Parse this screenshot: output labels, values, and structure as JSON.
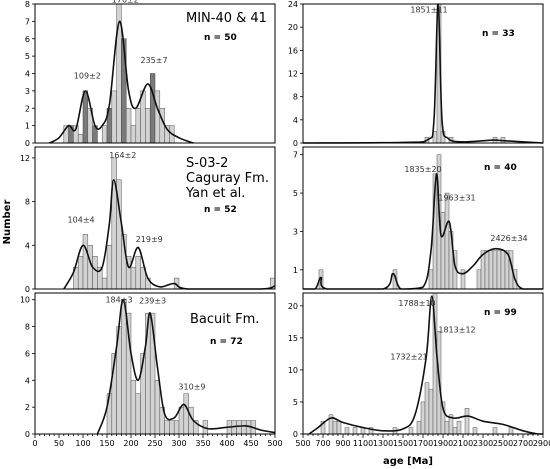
{
  "axes": {
    "ylabel": "Number",
    "xlabel": "age [Ma]"
  },
  "chart_data": [
    {
      "type": "bar",
      "panel": "top-left",
      "title_lines": [
        "MIN-40 & 41"
      ],
      "n_label": "n = 50",
      "bin_width": 10,
      "xlim": [
        0,
        500
      ],
      "ylim": [
        0,
        8
      ],
      "yticks": [
        0,
        1,
        2,
        3,
        4,
        5,
        6,
        7,
        8
      ],
      "xticks": [],
      "bins": [
        {
          "x": 60,
          "v": 1
        },
        {
          "x": 70,
          "v": 1,
          "dark": true
        },
        {
          "x": 80,
          "v": 1
        },
        {
          "x": 90,
          "v": 0.5
        },
        {
          "x": 100,
          "v": 3,
          "dark": true
        },
        {
          "x": 110,
          "v": 2
        },
        {
          "x": 120,
          "v": 1,
          "dark": true
        },
        {
          "x": 140,
          "v": 1
        },
        {
          "x": 150,
          "v": 2,
          "dark": true
        },
        {
          "x": 160,
          "v": 3
        },
        {
          "x": 170,
          "v": 8
        },
        {
          "x": 180,
          "v": 6,
          "dark": true
        },
        {
          "x": 190,
          "v": 2
        },
        {
          "x": 200,
          "v": 1
        },
        {
          "x": 210,
          "v": 2
        },
        {
          "x": 220,
          "v": 3
        },
        {
          "x": 230,
          "v": 2
        },
        {
          "x": 240,
          "v": 4,
          "dark": true
        },
        {
          "x": 250,
          "v": 3
        },
        {
          "x": 260,
          "v": 2
        },
        {
          "x": 270,
          "v": 1
        },
        {
          "x": 280,
          "v": 1
        }
      ],
      "curve": [
        [
          30,
          0
        ],
        [
          50,
          0.3
        ],
        [
          70,
          1.0
        ],
        [
          85,
          0.8
        ],
        [
          105,
          3.0
        ],
        [
          125,
          1.0
        ],
        [
          140,
          1.0
        ],
        [
          155,
          2.2
        ],
        [
          176,
          7.0
        ],
        [
          195,
          3.0
        ],
        [
          210,
          2.0
        ],
        [
          235,
          3.4
        ],
        [
          255,
          2.0
        ],
        [
          275,
          0.8
        ],
        [
          300,
          0.3
        ],
        [
          330,
          0
        ]
      ],
      "annotations": [
        {
          "text": "109±2",
          "x": 109,
          "y": 3.7
        },
        {
          "text": "176±2",
          "x": 188,
          "y": 8.1
        },
        {
          "text": "235±7",
          "x": 248,
          "y": 4.6
        }
      ]
    },
    {
      "type": "bar",
      "panel": "middle-left",
      "title_lines": [
        "S-03-2",
        "Caguray Fm.",
        "Yan et al."
      ],
      "n_label": "n = 52",
      "bin_width": 10,
      "xlim": [
        0,
        500
      ],
      "ylim": [
        0,
        13
      ],
      "yticks": [
        0,
        4,
        8,
        12
      ],
      "xticks": [],
      "bins": [
        {
          "x": 80,
          "v": 2
        },
        {
          "x": 90,
          "v": 3
        },
        {
          "x": 100,
          "v": 5
        },
        {
          "x": 110,
          "v": 4
        },
        {
          "x": 120,
          "v": 3
        },
        {
          "x": 130,
          "v": 2
        },
        {
          "x": 140,
          "v": 1
        },
        {
          "x": 150,
          "v": 4
        },
        {
          "x": 160,
          "v": 12
        },
        {
          "x": 170,
          "v": 10
        },
        {
          "x": 180,
          "v": 5
        },
        {
          "x": 190,
          "v": 3
        },
        {
          "x": 200,
          "v": 2
        },
        {
          "x": 210,
          "v": 3
        },
        {
          "x": 220,
          "v": 2
        },
        {
          "x": 230,
          "v": 1
        },
        {
          "x": 290,
          "v": 1
        },
        {
          "x": 490,
          "v": 1
        }
      ],
      "curve": [
        [
          60,
          0
        ],
        [
          80,
          1.5
        ],
        [
          100,
          4.0
        ],
        [
          120,
          2.0
        ],
        [
          140,
          2.0
        ],
        [
          155,
          6.0
        ],
        [
          164,
          10.0
        ],
        [
          180,
          6.0
        ],
        [
          195,
          2.0
        ],
        [
          215,
          3.8
        ],
        [
          235,
          1.0
        ],
        [
          260,
          0.2
        ],
        [
          290,
          0.5
        ],
        [
          320,
          0
        ],
        [
          470,
          0
        ],
        [
          500,
          0.3
        ]
      ],
      "annotations": [
        {
          "text": "104±4",
          "x": 96,
          "y": 6.1
        },
        {
          "text": "164±2",
          "x": 183,
          "y": 12.0
        },
        {
          "text": "219±9",
          "x": 238,
          "y": 4.3
        }
      ]
    },
    {
      "type": "bar",
      "panel": "bottom-left",
      "title_lines": [
        "Bacuit Fm."
      ],
      "n_label": "n = 72",
      "bin_width": 10,
      "xlim": [
        0,
        500
      ],
      "ylim": [
        0,
        10.5
      ],
      "yticks": [
        0,
        2,
        4,
        6,
        8,
        10
      ],
      "xticks": [
        0,
        50,
        100,
        150,
        200,
        250,
        300,
        350,
        400,
        450,
        500
      ],
      "minor_xtick_step": 10,
      "bins": [
        {
          "x": 150,
          "v": 3
        },
        {
          "x": 160,
          "v": 6
        },
        {
          "x": 170,
          "v": 8
        },
        {
          "x": 180,
          "v": 10
        },
        {
          "x": 190,
          "v": 9
        },
        {
          "x": 200,
          "v": 4
        },
        {
          "x": 210,
          "v": 3
        },
        {
          "x": 220,
          "v": 6
        },
        {
          "x": 230,
          "v": 9
        },
        {
          "x": 240,
          "v": 9
        },
        {
          "x": 250,
          "v": 4
        },
        {
          "x": 260,
          "v": 2
        },
        {
          "x": 270,
          "v": 1
        },
        {
          "x": 280,
          "v": 1
        },
        {
          "x": 290,
          "v": 1
        },
        {
          "x": 300,
          "v": 2
        },
        {
          "x": 310,
          "v": 3
        },
        {
          "x": 320,
          "v": 2
        },
        {
          "x": 330,
          "v": 1
        },
        {
          "x": 350,
          "v": 1
        },
        {
          "x": 400,
          "v": 1
        },
        {
          "x": 410,
          "v": 1
        },
        {
          "x": 420,
          "v": 1
        },
        {
          "x": 430,
          "v": 1
        },
        {
          "x": 440,
          "v": 1
        },
        {
          "x": 450,
          "v": 1
        }
      ],
      "curve": [
        [
          130,
          0
        ],
        [
          150,
          2.0
        ],
        [
          170,
          6.5
        ],
        [
          184,
          10.0
        ],
        [
          200,
          6.0
        ],
        [
          215,
          4.0
        ],
        [
          230,
          6.5
        ],
        [
          240,
          9.0
        ],
        [
          255,
          5.0
        ],
        [
          270,
          1.5
        ],
        [
          290,
          1.2
        ],
        [
          310,
          2.2
        ],
        [
          330,
          1.0
        ],
        [
          360,
          0.4
        ],
        [
          400,
          0.5
        ],
        [
          440,
          0.6
        ],
        [
          470,
          0.3
        ],
        [
          500,
          0.1
        ]
      ],
      "annotations": [
        {
          "text": "184±3",
          "x": 175,
          "y": 9.8
        },
        {
          "text": "239±3",
          "x": 245,
          "y": 9.7
        },
        {
          "text": "310±9",
          "x": 327,
          "y": 3.3
        }
      ]
    },
    {
      "type": "bar",
      "panel": "top-right",
      "title_lines": [],
      "n_label": "n = 33",
      "bin_width": 40,
      "xlim": [
        500,
        2900
      ],
      "ylim": [
        0,
        24
      ],
      "yticks": [
        0,
        4,
        8,
        12,
        16,
        20,
        24
      ],
      "xticks": [],
      "bins": [
        {
          "x": 1720,
          "v": 1
        },
        {
          "x": 1800,
          "v": 2
        },
        {
          "x": 1840,
          "v": 24
        },
        {
          "x": 1880,
          "v": 2
        },
        {
          "x": 1960,
          "v": 1
        },
        {
          "x": 2400,
          "v": 1
        },
        {
          "x": 2480,
          "v": 1
        }
      ],
      "curve": [
        [
          500,
          0
        ],
        [
          1500,
          0.1
        ],
        [
          1750,
          0.6
        ],
        [
          1810,
          4.0
        ],
        [
          1851,
          24.0
        ],
        [
          1890,
          4.0
        ],
        [
          1950,
          0.8
        ],
        [
          2100,
          0.2
        ],
        [
          2400,
          0.5
        ],
        [
          2500,
          0.4
        ],
        [
          2900,
          0
        ]
      ],
      "annotations": [
        {
          "text": "1851±11",
          "x": 1760,
          "y": 22.5
        }
      ]
    },
    {
      "type": "bar",
      "panel": "middle-right",
      "title_lines": [],
      "n_label": "n = 40",
      "bin_width": 40,
      "xlim": [
        500,
        2900
      ],
      "ylim": [
        0,
        7.4
      ],
      "yticks": [
        1,
        3,
        5,
        7
      ],
      "xticks": [],
      "bins": [
        {
          "x": 660,
          "v": 1
        },
        {
          "x": 1400,
          "v": 1
        },
        {
          "x": 1760,
          "v": 1
        },
        {
          "x": 1800,
          "v": 6
        },
        {
          "x": 1840,
          "v": 7
        },
        {
          "x": 1880,
          "v": 4
        },
        {
          "x": 1920,
          "v": 5
        },
        {
          "x": 1960,
          "v": 3
        },
        {
          "x": 2000,
          "v": 2
        },
        {
          "x": 2080,
          "v": 1
        },
        {
          "x": 2240,
          "v": 1
        },
        {
          "x": 2280,
          "v": 2
        },
        {
          "x": 2320,
          "v": 2
        },
        {
          "x": 2360,
          "v": 2
        },
        {
          "x": 2400,
          "v": 2
        },
        {
          "x": 2440,
          "v": 2
        },
        {
          "x": 2480,
          "v": 2
        },
        {
          "x": 2520,
          "v": 2
        },
        {
          "x": 2560,
          "v": 2
        },
        {
          "x": 2600,
          "v": 1
        }
      ],
      "curve": [
        [
          500,
          0
        ],
        [
          620,
          0
        ],
        [
          680,
          0.6
        ],
        [
          740,
          0
        ],
        [
          1300,
          0
        ],
        [
          1400,
          0.8
        ],
        [
          1480,
          0
        ],
        [
          1700,
          0.1
        ],
        [
          1780,
          2.0
        ],
        [
          1835,
          6.0
        ],
        [
          1880,
          2.8
        ],
        [
          1963,
          3.5
        ],
        [
          2020,
          1.2
        ],
        [
          2100,
          0.8
        ],
        [
          2200,
          1.2
        ],
        [
          2300,
          1.8
        ],
        [
          2426,
          2.1
        ],
        [
          2550,
          1.8
        ],
        [
          2620,
          0.5
        ],
        [
          2700,
          0
        ],
        [
          2900,
          0
        ]
      ],
      "annotations": [
        {
          "text": "1835±20",
          "x": 1700,
          "y": 6.1
        },
        {
          "text": "1963±31",
          "x": 2040,
          "y": 4.6
        },
        {
          "text": "2426±34",
          "x": 2560,
          "y": 2.5
        }
      ]
    },
    {
      "type": "bar",
      "panel": "bottom-right",
      "title_lines": [],
      "n_label": "n = 99",
      "bin_width": 40,
      "xlim": [
        500,
        2900
      ],
      "ylim": [
        0,
        22
      ],
      "yticks": [
        0,
        5,
        10,
        15,
        20
      ],
      "xticks": [
        500,
        700,
        900,
        1100,
        1300,
        1500,
        1700,
        1900,
        2100,
        2300,
        2500,
        2700,
        2900
      ],
      "minor_xtick_step": 50,
      "bins": [
        {
          "x": 680,
          "v": 2
        },
        {
          "x": 760,
          "v": 3
        },
        {
          "x": 800,
          "v": 2
        },
        {
          "x": 840,
          "v": 2
        },
        {
          "x": 920,
          "v": 1
        },
        {
          "x": 1000,
          "v": 1
        },
        {
          "x": 1080,
          "v": 1
        },
        {
          "x": 1160,
          "v": 1
        },
        {
          "x": 1400,
          "v": 1
        },
        {
          "x": 1560,
          "v": 1
        },
        {
          "x": 1640,
          "v": 2
        },
        {
          "x": 1680,
          "v": 5
        },
        {
          "x": 1720,
          "v": 8
        },
        {
          "x": 1760,
          "v": 7
        },
        {
          "x": 1800,
          "v": 22
        },
        {
          "x": 1840,
          "v": 16
        },
        {
          "x": 1880,
          "v": 5
        },
        {
          "x": 1920,
          "v": 2
        },
        {
          "x": 1960,
          "v": 3
        },
        {
          "x": 2000,
          "v": 1
        },
        {
          "x": 2040,
          "v": 2
        },
        {
          "x": 2120,
          "v": 4
        },
        {
          "x": 2200,
          "v": 1
        },
        {
          "x": 2400,
          "v": 1
        },
        {
          "x": 2560,
          "v": 1
        }
      ],
      "curve": [
        [
          560,
          0
        ],
        [
          650,
          1.0
        ],
        [
          780,
          2.5
        ],
        [
          900,
          1.8
        ],
        [
          1100,
          1.0
        ],
        [
          1300,
          0.5
        ],
        [
          1500,
          0.8
        ],
        [
          1620,
          3.0
        ],
        [
          1732,
          12.0
        ],
        [
          1788,
          21.5
        ],
        [
          1840,
          12.0
        ],
        [
          1900,
          4.0
        ],
        [
          2000,
          2.5
        ],
        [
          2150,
          2.8
        ],
        [
          2300,
          2.0
        ],
        [
          2500,
          1.5
        ],
        [
          2700,
          0.5
        ],
        [
          2850,
          0
        ],
        [
          2900,
          0
        ]
      ],
      "annotations": [
        {
          "text": "1788±10",
          "x": 1640,
          "y": 20.0
        },
        {
          "text": "1813±12",
          "x": 2040,
          "y": 15.8
        },
        {
          "text": "1732±21",
          "x": 1560,
          "y": 11.6
        }
      ]
    }
  ]
}
